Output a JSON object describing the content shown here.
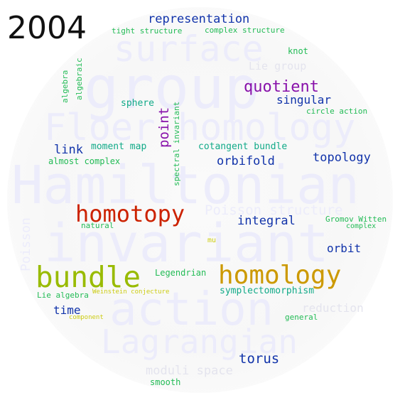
{
  "year": "2004",
  "colors": {
    "ghost": "#ececfb",
    "blue": "#1133aa",
    "green": "#22bb55",
    "teal": "#11aa88",
    "purple": "#8811aa",
    "red": "#cc2200",
    "olive": "#99bb00",
    "gold": "#cc9900",
    "yellow": "#cccc11"
  },
  "ghost_words": {
    "group": "group",
    "surface": "surface",
    "floer_homology": "Floer homology",
    "hamiltonian": "Hamiltonian",
    "invariant": "invariant",
    "action": "action",
    "lagrangian": "Lagrangian",
    "poisson_structure": "Poisson structure",
    "poisson": "Poisson",
    "moduli_space": "moduli space",
    "reduction": "reduction",
    "lie_group": "Lie group"
  },
  "words": {
    "representation": "representation",
    "tight_structure": "tight structure",
    "complex_structure": "complex structure",
    "knot": "knot",
    "algebraic": "algebraic",
    "algebra": "algebra",
    "quotient": "quotient",
    "singular": "singular",
    "sphere": "sphere",
    "point": "point",
    "spectral_invariant": "spectral invariant",
    "circle_action": "circle action",
    "link": "link",
    "moment_map": "moment map",
    "cotangent_bundle": "cotangent bundle",
    "topology": "topology",
    "almost_complex": "almost complex",
    "orbifold": "orbifold",
    "homotopy": "homotopy",
    "integral": "integral",
    "gromov_witten": "Gromov Witten",
    "complex": "complex",
    "natural": "natural",
    "mu": "mu",
    "orbit": "orbit",
    "bundle": "bundle",
    "homology": "homology",
    "legendrian": "Legendrian",
    "lie_algebra": "Lie algebra",
    "weinstein_conjecture": "Weinstein conjecture",
    "symplectomorphism": "symplectomorphism",
    "time": "time",
    "component": "component",
    "general": "general",
    "torus": "torus",
    "smooth": "smooth"
  }
}
